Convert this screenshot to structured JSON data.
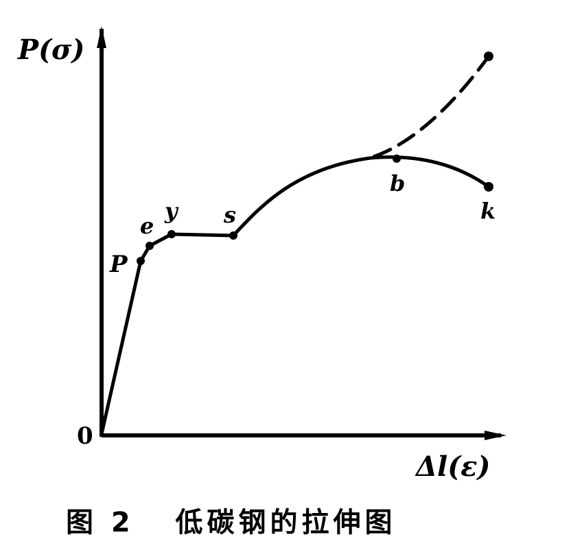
{
  "diagram": {
    "y_axis_label": "P(σ)",
    "x_axis_label": "Δl(ε)",
    "origin_label": "0",
    "points": [
      {
        "id": "p",
        "label": "P"
      },
      {
        "id": "e",
        "label": "e"
      },
      {
        "id": "y",
        "label": "y"
      },
      {
        "id": "s",
        "label": "s"
      },
      {
        "id": "b",
        "label": "b"
      },
      {
        "id": "k",
        "label": "k"
      }
    ]
  },
  "caption": "图 2   低碳钢的拉伸图"
}
